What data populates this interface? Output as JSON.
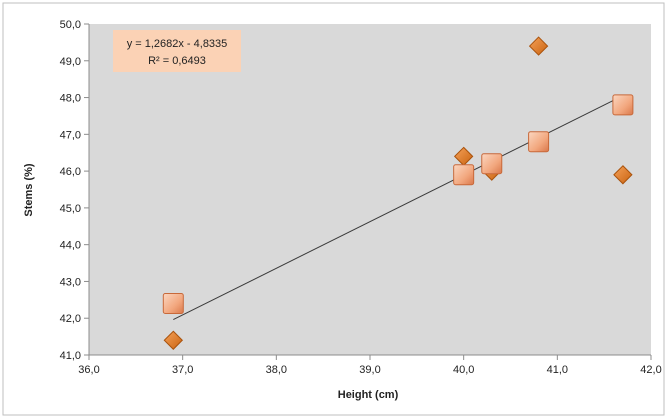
{
  "chart_data": {
    "type": "scatter",
    "xlabel": "Height (cm)",
    "ylabel": "Stems (%)",
    "xlim": [
      36.0,
      42.0
    ],
    "ylim": [
      41.0,
      50.0
    ],
    "x_ticks": [
      "36,0",
      "37,0",
      "38,0",
      "39,0",
      "40,0",
      "41,0",
      "42,0"
    ],
    "y_ticks": [
      "41,0",
      "42,0",
      "43,0",
      "44,0",
      "45,0",
      "46,0",
      "47,0",
      "48,0",
      "49,0",
      "50,0"
    ],
    "grid": false,
    "series": [
      {
        "marker": "diamond",
        "color": "#E07A1F",
        "points": [
          {
            "x": 36.9,
            "y": 41.4
          },
          {
            "x": 40.0,
            "y": 46.4
          },
          {
            "x": 40.3,
            "y": 46.0
          },
          {
            "x": 40.8,
            "y": 49.4
          },
          {
            "x": 41.7,
            "y": 45.9
          }
        ]
      },
      {
        "marker": "square",
        "color": "#F2A77E",
        "points": [
          {
            "x": 36.9,
            "y": 42.4
          },
          {
            "x": 40.0,
            "y": 45.9
          },
          {
            "x": 40.3,
            "y": 46.2
          },
          {
            "x": 40.8,
            "y": 46.8
          },
          {
            "x": 41.7,
            "y": 47.8
          }
        ]
      }
    ],
    "trendline": {
      "slope": 1.2682,
      "intercept": -4.8335,
      "x_range": [
        36.9,
        41.7
      ],
      "equation": "y = 1,2682x - 4,8335",
      "r_squared": "R² = 0,6493"
    },
    "plot_background": "#D9D9D9"
  }
}
